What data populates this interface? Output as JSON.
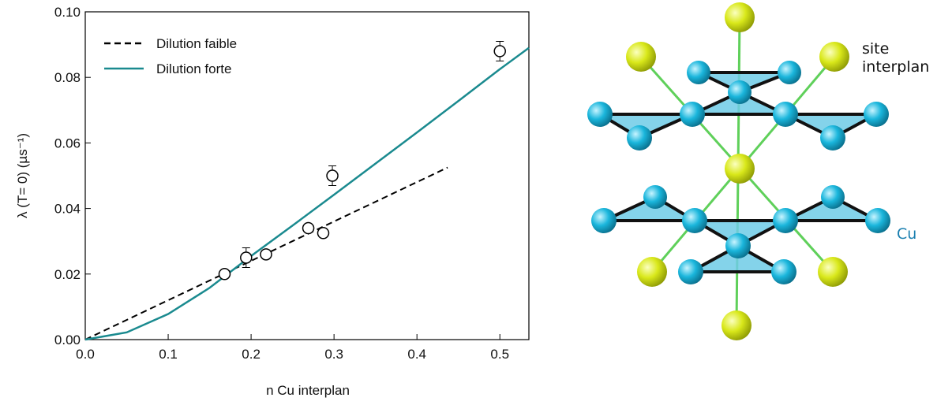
{
  "chart_data": {
    "type": "line",
    "xlabel": "n Cu interplan",
    "ylabel": "λ (T= 0) (µs⁻¹)",
    "xlim": [
      0,
      0.535
    ],
    "ylim": [
      0,
      0.1
    ],
    "xticks": [
      {
        "value": 0,
        "label": "0.0"
      },
      0.1,
      0.2,
      0.3,
      0.4,
      0.5
    ],
    "yticks": [
      {
        "value": 0,
        "label": "0.00"
      },
      0.02,
      0.04,
      0.06,
      0.08,
      {
        "value": 0.1,
        "label": "0.10"
      }
    ],
    "legend": "upper left",
    "series": [
      {
        "name": "Dilution faible",
        "type": "line",
        "dash": true,
        "color": "#000000",
        "x": [
          0,
          0.437
        ],
        "values": [
          0,
          0.0525
        ]
      },
      {
        "name": "Dilution forte",
        "type": "line",
        "dash": false,
        "color": "#1a8a8f",
        "x": [
          0,
          0.05,
          0.1,
          0.15,
          0.2,
          0.25,
          0.3,
          0.35,
          0.4,
          0.45,
          0.5,
          0.535
        ],
        "values": [
          0,
          0.0022,
          0.0078,
          0.0158,
          0.0255,
          0.0348,
          0.0442,
          0.0537,
          0.0632,
          0.0728,
          0.0825,
          0.089
        ]
      },
      {
        "type": "scatter",
        "color": "#000000",
        "x": [
          0.168,
          0.194,
          0.218,
          0.269,
          0.287,
          0.298,
          0.5
        ],
        "values": [
          0.02,
          0.025,
          0.026,
          0.034,
          0.0325,
          0.05,
          0.088
        ],
        "errors": [
          0.0005,
          0.003,
          0.0008,
          0.0008,
          0.0008,
          0.003,
          0.003
        ]
      }
    ]
  },
  "diagram": {
    "labels": [
      "site\ninterplan",
      "Cu"
    ]
  }
}
